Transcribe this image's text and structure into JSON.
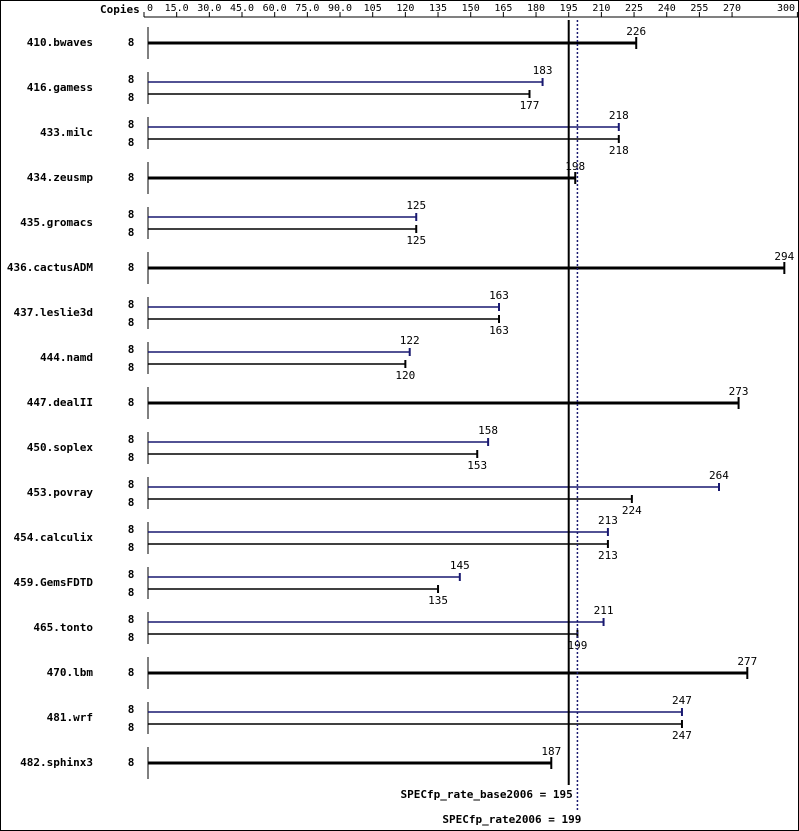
{
  "chart_data": {
    "type": "bar",
    "orientation": "horizontal",
    "header": "Copies",
    "xlim": [
      0,
      300
    ],
    "xticks": [
      0,
      {
        "value": 15,
        "label": "15.0"
      },
      {
        "value": 30,
        "label": "30.0"
      },
      {
        "value": 45,
        "label": "45.0"
      },
      {
        "value": 60,
        "label": "60.0"
      },
      {
        "value": 75,
        "label": "75.0"
      },
      {
        "value": 90,
        "label": "90.0"
      },
      105,
      120,
      135,
      150,
      165,
      180,
      195,
      210,
      225,
      240,
      255,
      270,
      300
    ],
    "categories": [
      "410.bwaves",
      "416.gamess",
      "433.milc",
      "434.zeusmp",
      "435.gromacs",
      "436.cactusADM",
      "437.leslie3d",
      "444.namd",
      "447.dealII",
      "450.soplex",
      "453.povray",
      "454.calculix",
      "459.GemsFDTD",
      "465.tonto",
      "470.lbm",
      "481.wrf",
      "482.sphinx3"
    ],
    "series": [
      {
        "color": "#191970",
        "copies": [
          null,
          8,
          8,
          null,
          8,
          null,
          8,
          8,
          null,
          8,
          8,
          8,
          8,
          8,
          null,
          8,
          null
        ],
        "values": [
          null,
          183,
          218,
          null,
          125,
          null,
          163,
          122,
          null,
          158,
          264,
          213,
          145,
          211,
          null,
          247,
          null
        ]
      },
      {
        "color": "#000000",
        "copies": [
          8,
          8,
          8,
          8,
          8,
          8,
          8,
          8,
          8,
          8,
          8,
          8,
          8,
          8,
          8,
          8,
          8
        ],
        "values": [
          226,
          177,
          218,
          198,
          125,
          294,
          163,
          120,
          273,
          153,
          224,
          213,
          135,
          199,
          277,
          247,
          187
        ]
      }
    ],
    "reference_lines": [
      {
        "label": "SPECfp_rate_base2006 = 195",
        "value": 195,
        "color": "#000000",
        "dashed": false
      },
      {
        "label": "SPECfp_rate2006 = 199",
        "value": 199,
        "color": "#191970",
        "dashed": true
      }
    ]
  }
}
